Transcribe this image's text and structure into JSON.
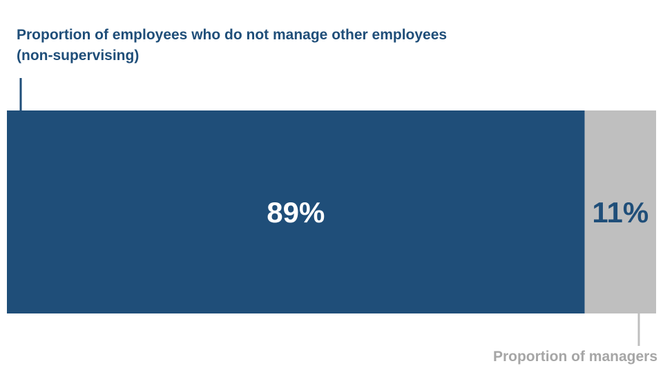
{
  "chart_data": {
    "type": "bar",
    "orientation": "horizontal-stacked",
    "categories": [
      "Proportion of employees who do not manage other employees (non-supervising)",
      "Proportion of managers"
    ],
    "values": [
      89,
      11
    ],
    "value_labels": [
      "89%",
      "11%"
    ],
    "colors": [
      "#1f4e79",
      "#bfbfbf"
    ],
    "label_colors": [
      "#ffffff",
      "#1f4e79"
    ],
    "title": "",
    "xlabel": "",
    "ylabel": "",
    "xlim": [
      0,
      100
    ],
    "grid": false,
    "legend": "none"
  },
  "labels": {
    "top_line1": "Proportion of employees who do not manage other employees",
    "top_line2": "(non-supervising)",
    "bottom": "Proportion of managers"
  },
  "colors": {
    "primary": "#1f4e79",
    "secondary": "#bfbfbf",
    "bottom_label": "#a6a6a6"
  }
}
